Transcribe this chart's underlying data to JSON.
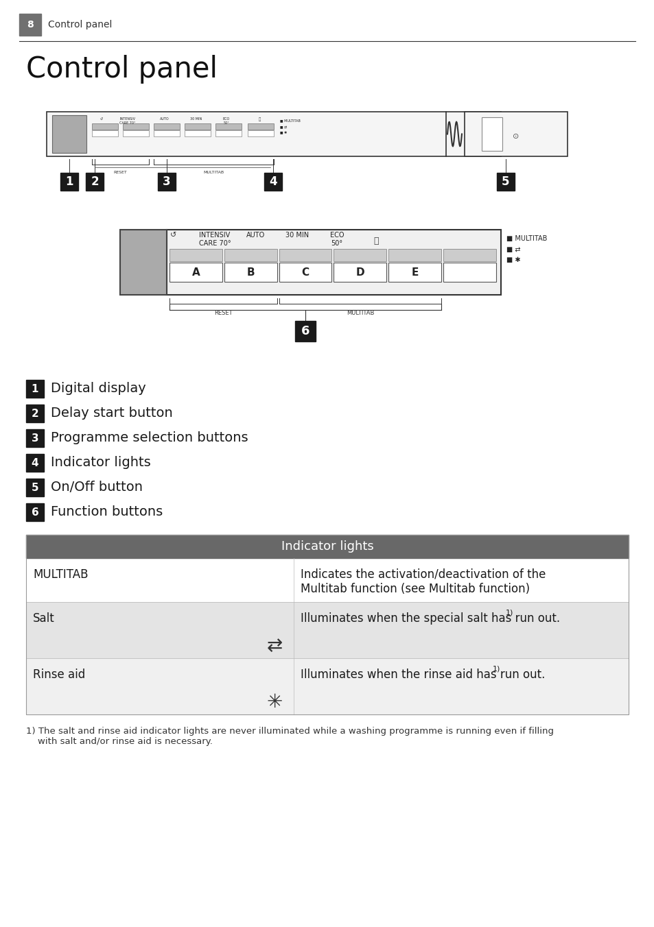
{
  "page_num": "8",
  "page_title_header": "Control panel",
  "main_title": "Control panel",
  "bg_color": "#ffffff",
  "items": [
    {
      "num": "1",
      "text": "Digital display"
    },
    {
      "num": "2",
      "text": "Delay start button"
    },
    {
      "num": "3",
      "text": "Programme selection buttons"
    },
    {
      "num": "4",
      "text": "Indicator lights"
    },
    {
      "num": "5",
      "text": "On/Off button"
    },
    {
      "num": "6",
      "text": "Function buttons"
    }
  ],
  "table_header": "Indicator lights",
  "table_header_bg": "#686868",
  "table_rows": [
    {
      "col1": "MULTITAB",
      "col1_icon": "",
      "col2": "Indicates the activation/deactivation of the\nMultitab function (see Multitab function)",
      "bg": "#ffffff"
    },
    {
      "col1": "Salt",
      "col1_icon": "salt",
      "col2": "Illuminates when the special salt has run out.",
      "col2_sup": "1)",
      "bg": "#e8e8e8"
    },
    {
      "col1": "Rinse aid",
      "col1_icon": "rinse",
      "col2": "Illuminates when the rinse aid has run out.",
      "col2_sup": "1)",
      "bg": "#f4f4f4"
    }
  ],
  "footnote_bold": "1)",
  "footnote": " The salt and rinse aid indicator lights are never illuminated while a washing programme is running even if filling\n    with salt and/or rinse aid is necessary."
}
